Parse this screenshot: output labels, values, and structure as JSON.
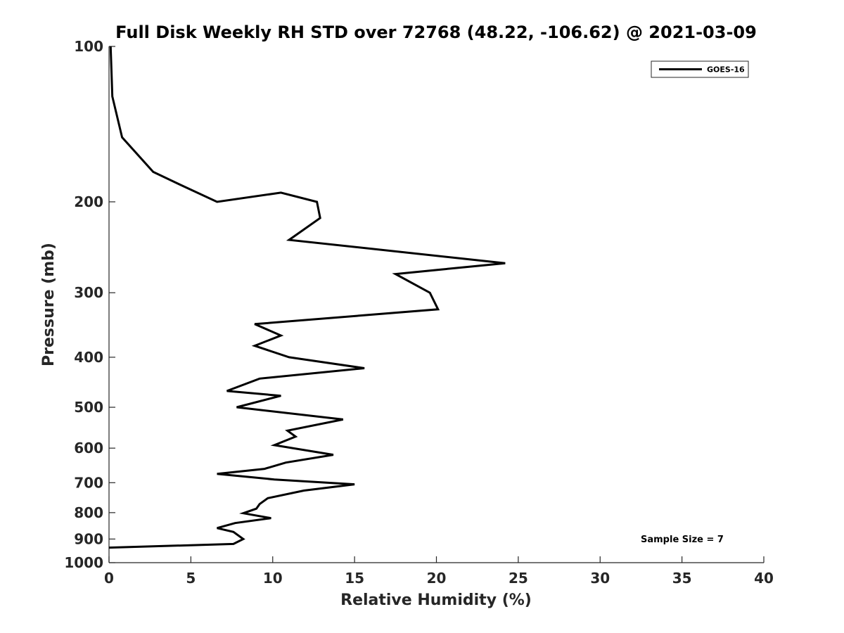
{
  "chart_data": {
    "type": "line",
    "title": "Full Disk Weekly RH STD over 72768 (48.22, -106.62) @ 2021-03-09",
    "xlabel": "Relative Humidity (%)",
    "ylabel": "Pressure (mb)",
    "xlim": [
      0,
      40
    ],
    "ylim": [
      100,
      1000
    ],
    "y_scale": "log",
    "y_reversed": true,
    "x_ticks": [
      0,
      5,
      10,
      15,
      20,
      25,
      30,
      35,
      40
    ],
    "y_ticks": [
      100,
      200,
      300,
      400,
      500,
      600,
      700,
      800,
      900,
      1000
    ],
    "grid": false,
    "legend_position": "top-right",
    "series": [
      {
        "name": "GOES-16",
        "color": "#000000",
        "points": [
          [
            0.1,
            100
          ],
          [
            0.2,
            125
          ],
          [
            0.8,
            150
          ],
          [
            2.7,
            175
          ],
          [
            4.3,
            185
          ],
          [
            6.6,
            200
          ],
          [
            10.5,
            192
          ],
          [
            12.7,
            200
          ],
          [
            12.9,
            215
          ],
          [
            11.0,
            237
          ],
          [
            24.2,
            263
          ],
          [
            17.5,
            276
          ],
          [
            19.6,
            300
          ],
          [
            20.1,
            323
          ],
          [
            8.9,
            345
          ],
          [
            10.5,
            363
          ],
          [
            8.9,
            380
          ],
          [
            11.0,
            400
          ],
          [
            15.6,
            420
          ],
          [
            9.2,
            440
          ],
          [
            7.2,
            465
          ],
          [
            10.5,
            475
          ],
          [
            7.8,
            500
          ],
          [
            14.3,
            528
          ],
          [
            10.9,
            555
          ],
          [
            11.4,
            570
          ],
          [
            10.1,
            592
          ],
          [
            13.7,
            618
          ],
          [
            10.8,
            640
          ],
          [
            9.5,
            658
          ],
          [
            6.6,
            673
          ],
          [
            10.1,
            690
          ],
          [
            15.0,
            705
          ],
          [
            11.9,
            725
          ],
          [
            9.7,
            750
          ],
          [
            9.2,
            770
          ],
          [
            9.0,
            786
          ],
          [
            8.2,
            802
          ],
          [
            9.9,
            820
          ],
          [
            7.7,
            838
          ],
          [
            6.6,
            857
          ],
          [
            7.6,
            872
          ],
          [
            8.2,
            900
          ],
          [
            7.6,
            920
          ],
          [
            0.0,
            935
          ]
        ]
      }
    ],
    "annotations": [
      "Sample Size = 7"
    ]
  }
}
